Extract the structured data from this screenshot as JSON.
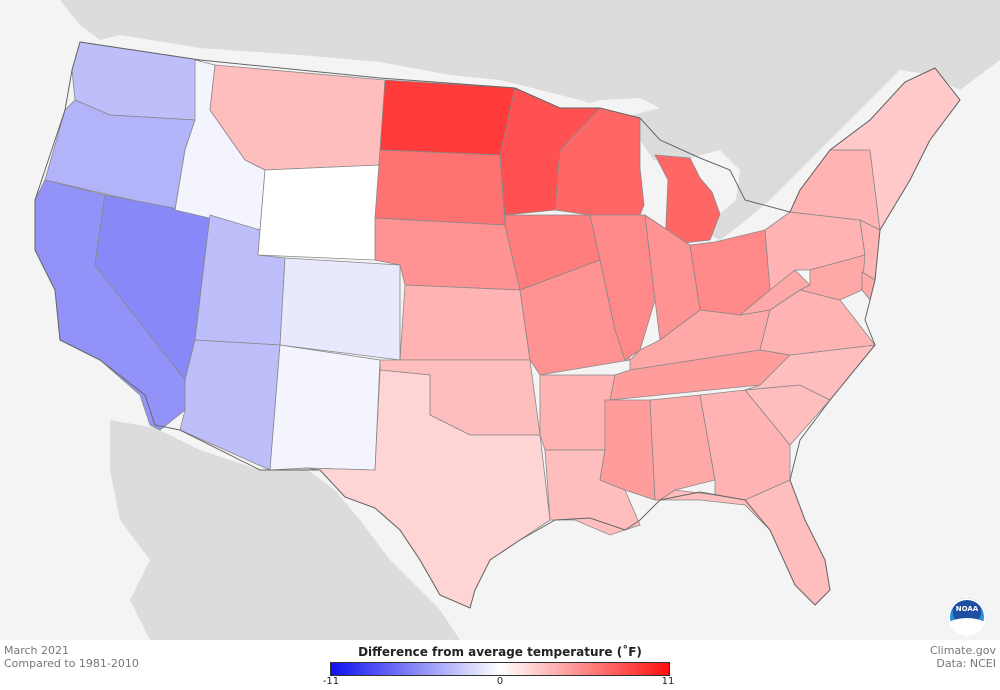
{
  "caption": {
    "line1": "March 2021",
    "line2": "Compared to 1981-2010"
  },
  "credit": {
    "source": "Climate.gov",
    "data": "Data: NCEI"
  },
  "legend": {
    "title": "Difference from average temperature (˚F)",
    "min_label": "-11",
    "mid_label": "0",
    "max_label": "11",
    "min_value": -11,
    "max_value": 11,
    "colors": {
      "cold": "#1010f0",
      "neutral": "#ffffff",
      "warm": "#ff1010"
    }
  },
  "logo": {
    "text": "NOAA"
  },
  "palette": {
    "land_outside": "#dcdcdc",
    "ocean": "#f4f4f4",
    "state_border": "#888888",
    "nation_border": "#666666"
  },
  "regions": [
    {
      "name": "Washington",
      "anomaly": -3
    },
    {
      "name": "Oregon",
      "anomaly": -3.5
    },
    {
      "name": "California",
      "anomaly": -5
    },
    {
      "name": "Nevada",
      "anomaly": -5.5
    },
    {
      "name": "Idaho",
      "anomaly": -0.5
    },
    {
      "name": "Utah",
      "anomaly": -3
    },
    {
      "name": "Arizona",
      "anomaly": -3
    },
    {
      "name": "Montana",
      "anomaly": 3
    },
    {
      "name": "Wyoming",
      "anomaly": 0
    },
    {
      "name": "Colorado",
      "anomaly": -1
    },
    {
      "name": "New Mexico",
      "anomaly": -0.5
    },
    {
      "name": "North Dakota",
      "anomaly": 9
    },
    {
      "name": "South Dakota",
      "anomaly": 6.5
    },
    {
      "name": "Nebraska",
      "anomaly": 5
    },
    {
      "name": "Kansas",
      "anomaly": 3.5
    },
    {
      "name": "Oklahoma",
      "anomaly": 3
    },
    {
      "name": "Texas",
      "anomaly": 2
    },
    {
      "name": "Minnesota",
      "anomaly": 8
    },
    {
      "name": "Iowa",
      "anomaly": 6
    },
    {
      "name": "Missouri",
      "anomaly": 5
    },
    {
      "name": "Arkansas",
      "anomaly": 3.5
    },
    {
      "name": "Louisiana",
      "anomaly": 3
    },
    {
      "name": "Wisconsin",
      "anomaly": 7
    },
    {
      "name": "Illinois",
      "anomaly": 5.5
    },
    {
      "name": "Michigan",
      "anomaly": 7
    },
    {
      "name": "Indiana",
      "anomaly": 5
    },
    {
      "name": "Ohio",
      "anomaly": 5.5
    },
    {
      "name": "Kentucky",
      "anomaly": 4
    },
    {
      "name": "Tennessee",
      "anomaly": 4.5
    },
    {
      "name": "Mississippi",
      "anomaly": 4.5
    },
    {
      "name": "Alabama",
      "anomaly": 4
    },
    {
      "name": "Georgia",
      "anomaly": 3.5
    },
    {
      "name": "Florida",
      "anomaly": 3
    },
    {
      "name": "South Carolina",
      "anomaly": 3
    },
    {
      "name": "North Carolina",
      "anomaly": 3
    },
    {
      "name": "Virginia",
      "anomaly": 3.5
    },
    {
      "name": "West Virginia",
      "anomaly": 4
    },
    {
      "name": "Pennsylvania",
      "anomaly": 3.5
    },
    {
      "name": "New York",
      "anomaly": 3.5
    },
    {
      "name": "New England",
      "anomaly": 2.5
    },
    {
      "name": "New Jersey",
      "anomaly": 3.5
    },
    {
      "name": "Maryland",
      "anomaly": 4
    },
    {
      "name": "Delaware",
      "anomaly": 4
    }
  ]
}
